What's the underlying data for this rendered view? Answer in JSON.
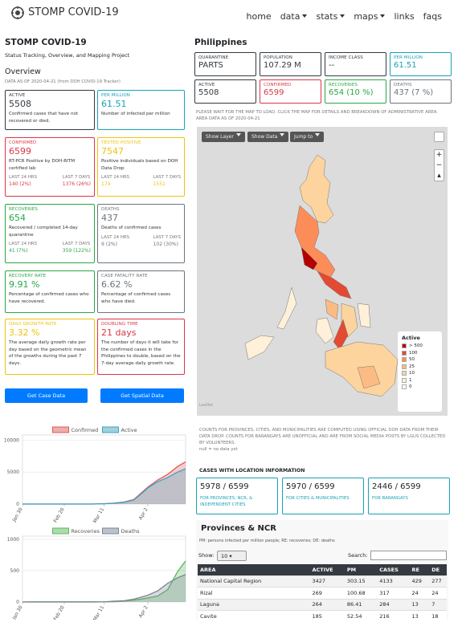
{
  "nav": {
    "brand": "STOMP COVID-19",
    "items": [
      "home",
      "data",
      "stats",
      "maps",
      "links",
      "faqs"
    ]
  },
  "overview": {
    "title": "STOMP COVID-19",
    "subtitle": "Status Tracking, Overview, and Mapping Project",
    "heading": "Overview",
    "as_of": "DATA AS OF 2020-04-21 (from DOH COVID-19 Tracker)",
    "cards": [
      {
        "label": "ACTIVE",
        "value": "5508",
        "desc": "Confirmed cases that have not recovered or died.",
        "color": "#343a40"
      },
      {
        "label": "PER MILLION",
        "value": "61.51",
        "desc": "Number of infected per million",
        "color": "#17a2b8"
      },
      {
        "label": "CONFIRMED",
        "value": "6599",
        "desc": "RT-PCR Positive by DOH-RITM certified lab",
        "color": "#dc3545",
        "last24_label": "LAST 24 HRS",
        "last24": "140 (2%)",
        "last7_label": "LAST 7 DAYS",
        "last7": "1376 (26%)"
      },
      {
        "label": "TESTED POSITIVE",
        "value": "7547",
        "desc": "Positive individuals based on DOH Data Drop",
        "color": "#f0c20c",
        "last24_label": "LAST 24 HRS",
        "last24": "174",
        "last7_label": "LAST 7 DAYS",
        "last7": "1551"
      },
      {
        "label": "RECOVERIES",
        "value": "654",
        "desc": "Recovered / completed 14-day quarantine",
        "color": "#28a745",
        "last24_label": "LAST 24 HRS",
        "last24": "41 (7%)",
        "last7_label": "LAST 7 DAYS",
        "last7": "359 (122%)"
      },
      {
        "label": "DEATHS",
        "value": "437",
        "desc": "Deaths of confirmed cases",
        "color": "#6c757d",
        "last24_label": "LAST 24 HRS",
        "last24": "9 (2%)",
        "last7_label": "LAST 7 DAYS",
        "last7": "102 (30%)"
      },
      {
        "label": "RECOVERY RATE",
        "value": "9.91 %",
        "desc": "Percentage of confirmed cases who have recovered.",
        "color": "#28a745"
      },
      {
        "label": "CASE FATALITY RATE",
        "value": "6.62 %",
        "desc": "Percentage of confirmed cases who have died.",
        "color": "#6c757d"
      },
      {
        "label": "DAILY GROWTH RATE",
        "value": "3.32 %",
        "desc": "The average daily growth rate per day based on the geometric mean of the growths during the past 7 days.",
        "color": "#f0c20c"
      },
      {
        "label": "DOUBLING TIME",
        "value": "21 days",
        "desc": "The number of days it will take for the confirmed cases in the Philippines to double, based on the 7-day average daily growth rate.",
        "color": "#dc3545"
      }
    ],
    "buttons": [
      "Get Case Data",
      "Get Spatial Data"
    ]
  },
  "philippines": {
    "title": "Philippines",
    "stats": [
      {
        "label": "QUARANTINE",
        "value": "PARTS",
        "color": "#343a40"
      },
      {
        "label": "POPULATION",
        "value": "107.29 M",
        "color": "#343a40"
      },
      {
        "label": "INCOME CLASS",
        "value": "--",
        "color": "#343a40"
      },
      {
        "label": "PER MILLION",
        "value": "61.51",
        "color": "#17a2b8"
      },
      {
        "label": "ACTIVE",
        "value": "5508",
        "color": "#343a40"
      },
      {
        "label": "CONFIRMED",
        "value": "6599",
        "color": "#dc3545"
      },
      {
        "label": "RECOVERIES",
        "value": "654 (10 %)",
        "color": "#28a745"
      },
      {
        "label": "DEATHS",
        "value": "437 (7 %)",
        "color": "#6c757d"
      }
    ],
    "note": "PLEASE WAIT FOR THE MAP TO LOAD. CLICK THE MAP FOR DETAILS AND BREAKDOWN OF ADMINISTRATIVE AREA.",
    "area_as_of": "AREA DATA AS OF 2020-04-21",
    "map": {
      "buttons": [
        "Show Layer",
        "Show Data",
        "Jump to"
      ],
      "legend": {
        "title": "Active",
        "items": [
          {
            "label": "> 500",
            "color": "#b30000"
          },
          {
            "label": "100",
            "color": "#e34a33"
          },
          {
            "label": "50",
            "color": "#fc8d59"
          },
          {
            "label": "25",
            "color": "#fdbb84"
          },
          {
            "label": "10",
            "color": "#fdd49e"
          },
          {
            "label": "1",
            "color": "#fef0d9"
          },
          {
            "label": "0",
            "color": "#ffffff"
          }
        ]
      },
      "attribution": "Leaflet"
    },
    "notes": "COUNTS FOR PROVINCES, CITIES, AND MUNICIPALITIES ARE COMPUTED USING OFFICIAL DOH DATA FROM THEIR DATA DROP. COUNTS FOR BARANGAYS ARE UNOFFICIAL AND ARE FROM SOCIAL MEDIA POSTS BY LGUS COLLECTED BY VOLUNTEERS.",
    "null_note": "null = no data yet",
    "location": {
      "title": "CASES WITH LOCATION INFORMATION",
      "cards": [
        {
          "value": "5978 / 6599",
          "desc": "FOR PROVINCES, NCR, & INDEPENDENT CITIES"
        },
        {
          "value": "5970 / 6599",
          "desc": "FOR CITIES & MUNICIPALITIES"
        },
        {
          "value": "2446 / 6599",
          "desc": "FOR BARANGAYS"
        }
      ]
    },
    "table": {
      "title": "Provinces & NCR",
      "legend": "PM: persons infected per million people; RE: recoveries; DE: deaths",
      "show_label": "Show:",
      "show_value": "10",
      "search_label": "Search:",
      "headers": [
        "AREA",
        "ACTIVE",
        "PM",
        "CASES",
        "RE",
        "DE"
      ],
      "rows": [
        [
          "National Capital Region",
          "3427",
          "303.15",
          "4133",
          "429",
          "277"
        ],
        [
          "Rizal",
          "269",
          "100.68",
          "317",
          "24",
          "24"
        ],
        [
          "Laguna",
          "264",
          "86.41",
          "284",
          "13",
          "7"
        ],
        [
          "Cavite",
          "185",
          "52.54",
          "216",
          "13",
          "18"
        ]
      ]
    }
  },
  "chart_data": [
    {
      "type": "area",
      "x": [
        "Jan 30",
        "Feb 5",
        "Feb 20",
        "Mar 5",
        "Mar 11",
        "Mar 16",
        "Mar 21",
        "Mar 26",
        "Mar 31",
        "Apr 2",
        "Apr 7",
        "Apr 12",
        "Apr 17",
        "Apr 21"
      ],
      "xlim": [
        "Jan 30",
        "Apr 21"
      ],
      "xticks": [
        "Jan 30",
        "Feb 20",
        "Mar 11",
        "Apr 2"
      ],
      "ylim": [
        0,
        10800
      ],
      "yticks": [
        0,
        5000,
        10000
      ],
      "series": [
        {
          "name": "Confirmed",
          "color": "#e05a5a",
          "values": [
            1,
            3,
            3,
            3,
            49,
            142,
            307,
            707,
            2084,
            2633,
            3764,
            4648,
            5878,
            6599
          ]
        },
        {
          "name": "Active",
          "color": "#3fa3bd",
          "values": [
            1,
            2,
            2,
            2,
            46,
            126,
            273,
            633,
            1932,
            2518,
            3491,
            4154,
            5004,
            5508
          ]
        }
      ]
    },
    {
      "type": "area",
      "x": [
        "Jan 30",
        "Feb 5",
        "Feb 20",
        "Mar 5",
        "Mar 11",
        "Mar 16",
        "Mar 21",
        "Mar 26",
        "Mar 31",
        "Apr 2",
        "Apr 7",
        "Apr 12",
        "Apr 17",
        "Apr 21"
      ],
      "xlim": [
        "Jan 30",
        "Apr 21"
      ],
      "xticks": [
        "Jan 30",
        "Feb 20",
        "Mar 11",
        "Apr 2"
      ],
      "ylim": [
        0,
        1050
      ],
      "yticks": [
        0,
        500,
        1000
      ],
      "series": [
        {
          "name": "Recoveries",
          "color": "#5cb85c",
          "values": [
            0,
            1,
            1,
            1,
            2,
            4,
            15,
            29,
            52,
            64,
            96,
            197,
            487,
            654
          ]
        },
        {
          "name": "Deaths",
          "color": "#7c8498",
          "values": [
            0,
            1,
            1,
            1,
            2,
            12,
            19,
            45,
            88,
            107,
            177,
            297,
            387,
            437
          ]
        }
      ]
    }
  ]
}
